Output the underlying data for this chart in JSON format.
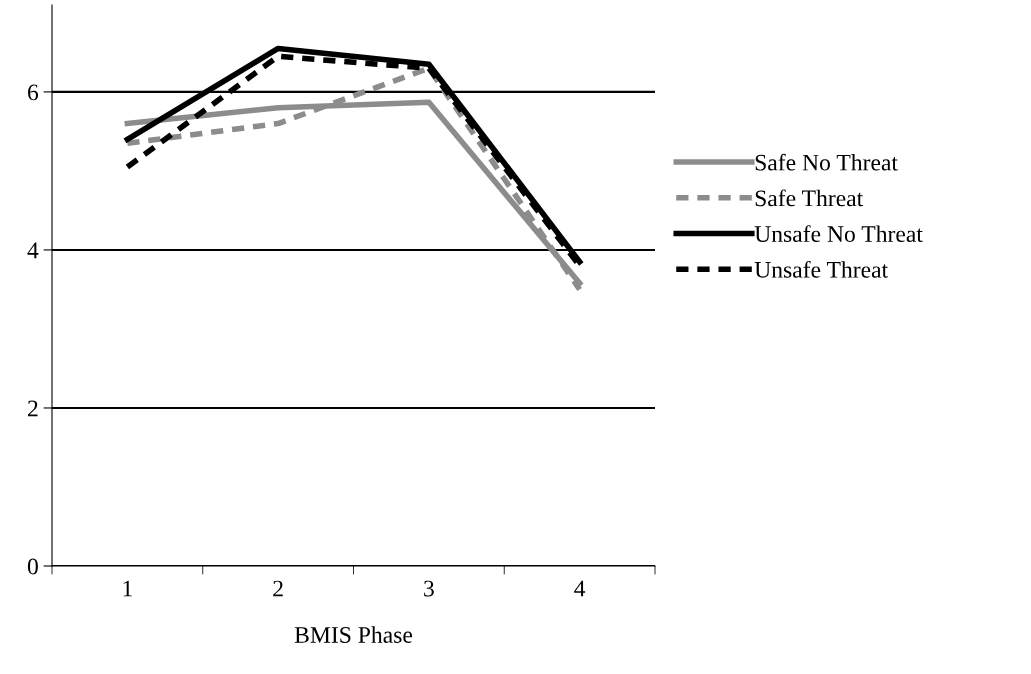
{
  "chart_data": {
    "type": "line",
    "xlabel": "BMIS Phase",
    "categories": [
      "1",
      "2",
      "3",
      "4"
    ],
    "series": [
      {
        "name": "Safe No Threat",
        "color": "#8c8c8c",
        "line_style": "solid",
        "values": [
          5.6,
          5.8,
          5.87,
          3.58
        ]
      },
      {
        "name": "Safe Threat",
        "color": "#8c8c8c",
        "line_style": "dashed",
        "values": [
          5.35,
          5.6,
          6.3,
          3.5
        ]
      },
      {
        "name": "Unsafe No Threat",
        "color": "#000000",
        "line_style": "solid",
        "values": [
          5.4,
          6.55,
          6.35,
          3.85
        ]
      },
      {
        "name": "Unsafe Threat",
        "color": "#000000",
        "line_style": "dashed",
        "values": [
          5.05,
          6.45,
          6.3,
          3.8
        ]
      }
    ],
    "ylim": [
      0,
      7.1
    ],
    "yticks": [
      0,
      2,
      4,
      6
    ],
    "grid": "y",
    "legend": "right",
    "marker": "none"
  }
}
